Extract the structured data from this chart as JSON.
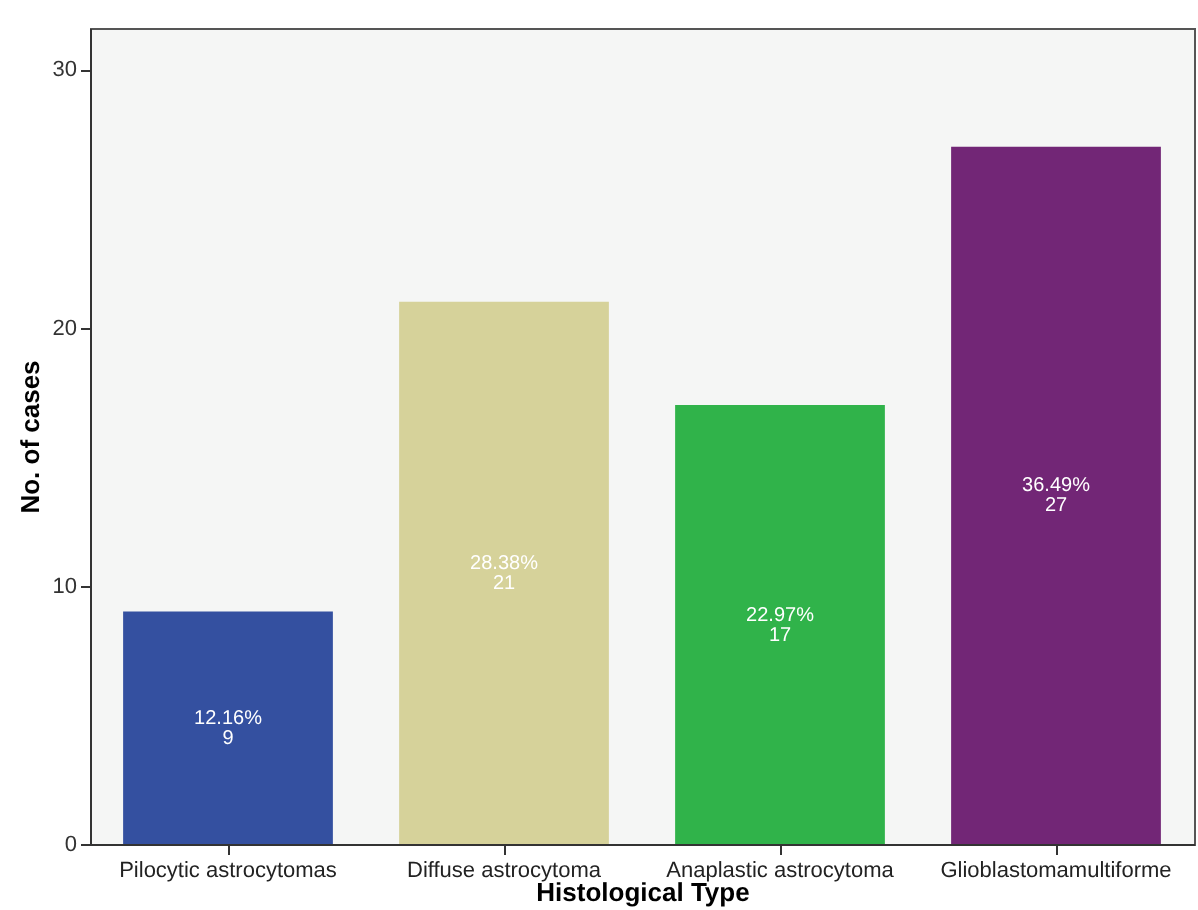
{
  "chart_data": {
    "type": "bar",
    "xlabel": "Histological Type",
    "ylabel": "No. of cases",
    "categories": [
      "Pilocytic astrocytomas",
      "Diffuse astrocytoma",
      "Anaplastic astrocytoma",
      "Glioblastomamultiforme"
    ],
    "values": [
      9,
      21,
      17,
      27
    ],
    "colors": [
      "#3450a0",
      "#d6d29a",
      "#30b34a",
      "#722676"
    ],
    "value_labels": [
      "12.16%\n9",
      "28.38%\n21",
      "22.97%\n17",
      "36.49%\n27"
    ],
    "ylim": [
      0,
      31.6
    ],
    "yticks": [
      0,
      10,
      20,
      30
    ],
    "grid": false
  }
}
